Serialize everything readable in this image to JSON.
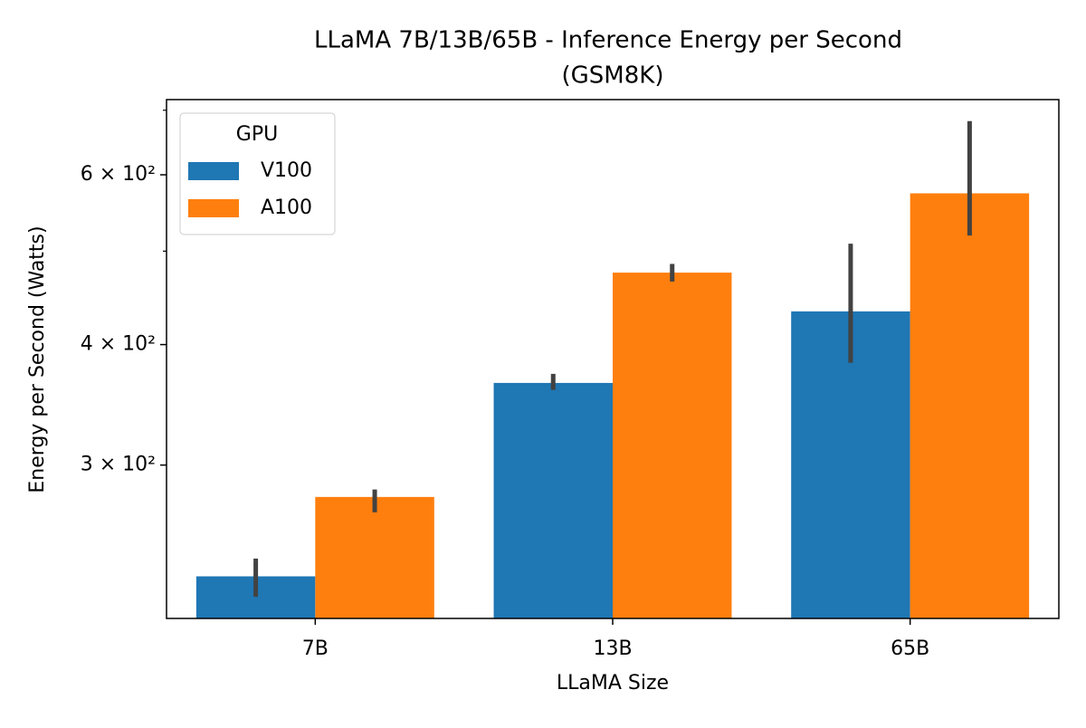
{
  "chart_data": {
    "type": "bar",
    "title": [
      "LLaMA 7B/13B/65B - Inference Energy per Second",
      "(GSM8K)"
    ],
    "xlabel": "LLaMA Size",
    "ylabel": "Energy per Second (Watts)",
    "categories": [
      "7B",
      "13B",
      "65B"
    ],
    "series": [
      {
        "name": "V100",
        "color": "#1f77b4",
        "values": [
          230,
          365,
          433
        ],
        "ci_low": [
          219,
          359,
          383
        ],
        "ci_high": [
          240,
          373,
          509
        ]
      },
      {
        "name": "A100",
        "color": "#ff7f0e",
        "values": [
          278,
          475,
          574
        ],
        "ci_low": [
          268,
          465,
          519
        ],
        "ci_high": [
          283,
          485,
          682
        ]
      }
    ],
    "log_y": true,
    "ylim": [
      208,
      718
    ],
    "yticks": [
      {
        "value": 300,
        "label": "3 × 10²"
      },
      {
        "value": 400,
        "label": "4 × 10²"
      },
      {
        "value": 600,
        "label": "6 × 10²"
      }
    ],
    "yminorticks": [
      500,
      700
    ],
    "legend": {
      "title": "GPU",
      "loc": "upper left"
    }
  }
}
